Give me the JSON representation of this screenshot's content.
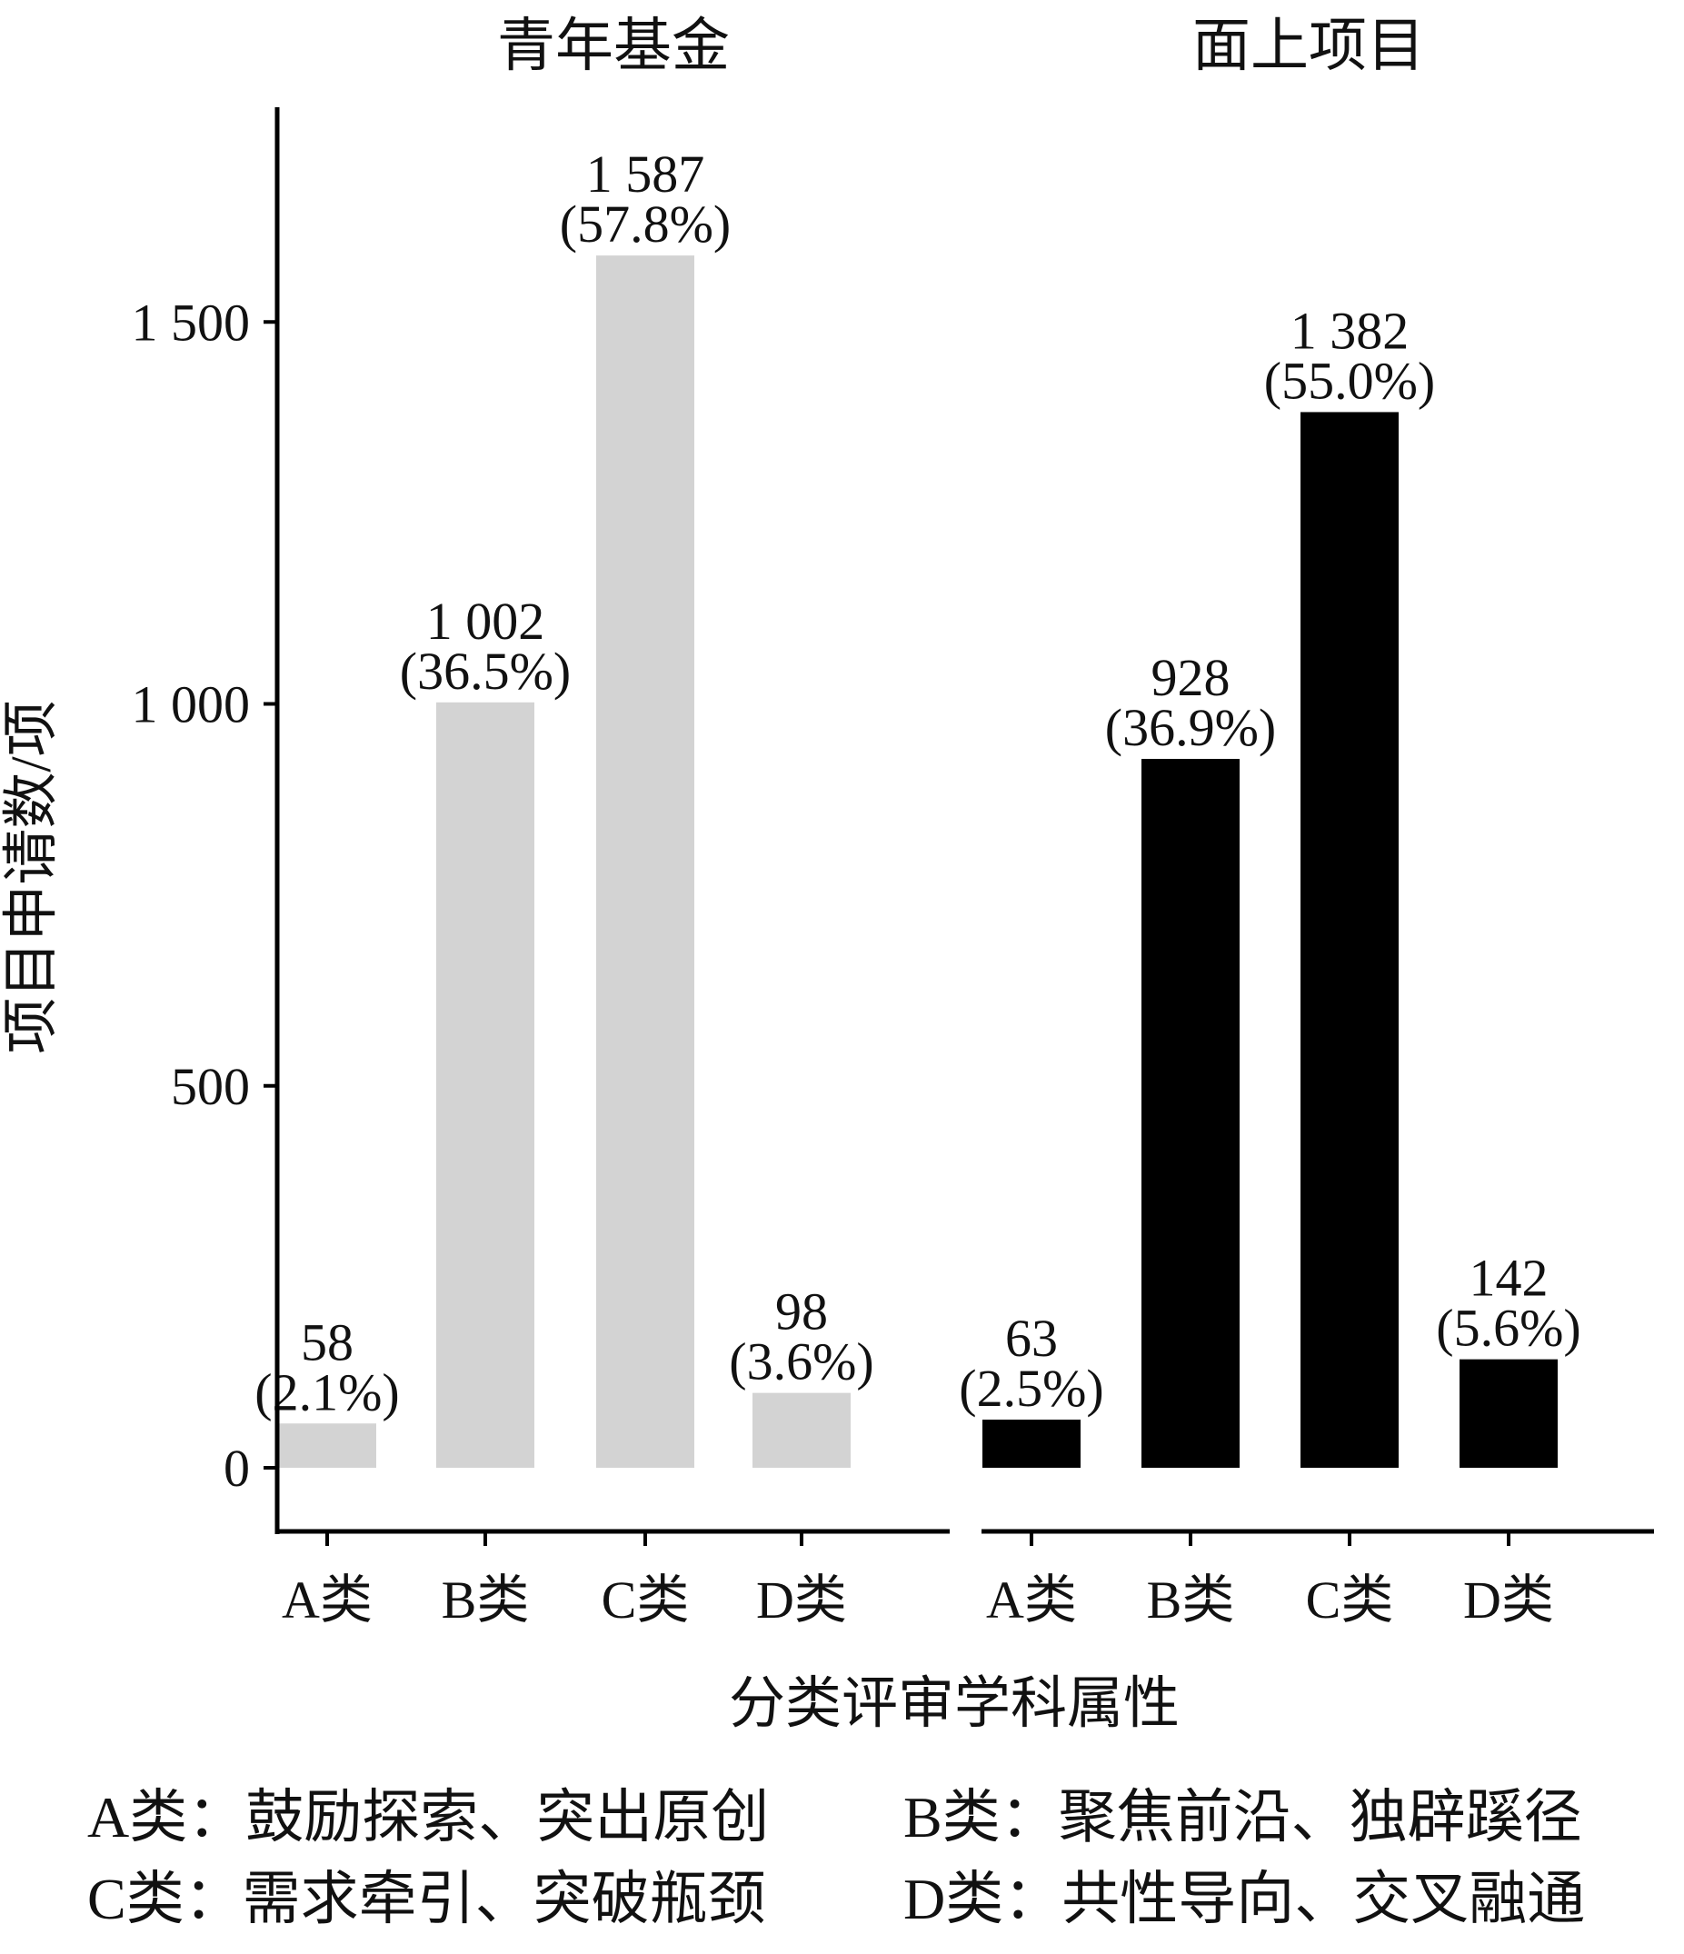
{
  "chart_data": {
    "type": "bar",
    "ylabel": "项目申请数/项",
    "xlabel": "分类评审学科属性",
    "ylim": [
      -100,
      1800
    ],
    "yticks": [
      0,
      500,
      1000,
      1500
    ],
    "ytick_labels": [
      "0",
      "500",
      "1 000",
      "1 500"
    ],
    "categories": [
      "A类",
      "B类",
      "C类",
      "D类"
    ],
    "panels": [
      {
        "title": "青年基金",
        "color": "#d3d3d3",
        "values": [
          58,
          1002,
          1587,
          98
        ],
        "value_labels": [
          "58",
          "1 002",
          "1 587",
          "98"
        ],
        "percent_labels": [
          "(2.1%)",
          "(36.5%)",
          "(57.8%)",
          "(3.6%)"
        ]
      },
      {
        "title": "面上项目",
        "color": "#000000",
        "values": [
          63,
          928,
          1382,
          142
        ],
        "value_labels": [
          "63",
          "928",
          "1 382",
          "142"
        ],
        "percent_labels": [
          "(2.5%)",
          "(36.9%)",
          "(55.0%)",
          "(5.6%)"
        ]
      }
    ]
  },
  "legend": [
    [
      "A类：鼓励探索、突出原创",
      "B类：聚焦前沿、独辟蹊径"
    ],
    [
      "C类：需求牵引、突破瓶颈",
      "D类：共性导向、交叉融通"
    ]
  ]
}
